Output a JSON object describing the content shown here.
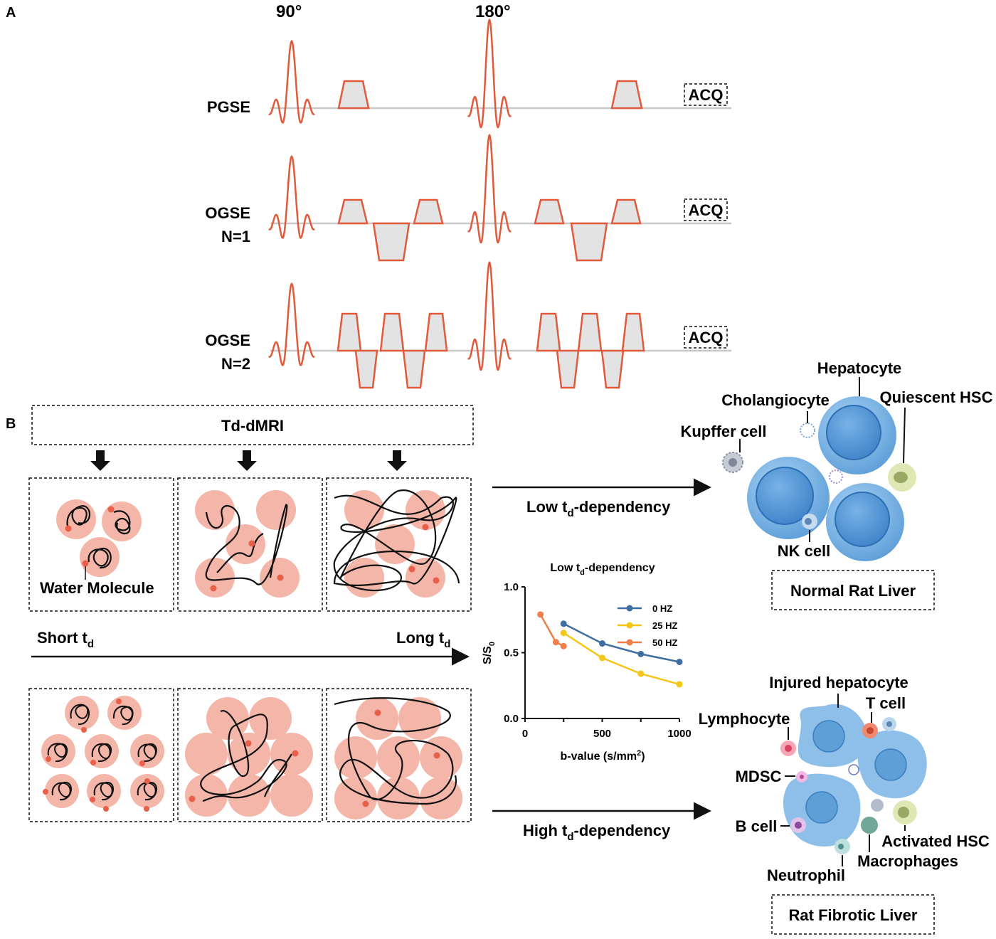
{
  "panel_a": {
    "letter": "A",
    "pulse_90": "90°",
    "pulse_180": "180°",
    "sequences": [
      {
        "label_1": "PGSE",
        "label_2": "",
        "acq": "ACQ"
      },
      {
        "label_1": "OGSE",
        "label_2": "N=1",
        "acq": "ACQ"
      },
      {
        "label_1": "OGSE",
        "label_2": "N=2",
        "acq": "ACQ"
      }
    ]
  },
  "panel_b": {
    "letter": "B",
    "header": "Td-dMRI",
    "water_molecule": "Water Molecule",
    "short_td": "Short t",
    "long_td": "Long t",
    "td_sub": "d",
    "low_dep_prefix": "Low t",
    "high_dep_prefix": "High t",
    "dep_suffix": "-dependency",
    "normal_title": "Normal Rat Liver",
    "fibrotic_title": "Rat Fibrotic Liver",
    "normal_cells": [
      "Hepatocyte",
      "Cholangiocyte",
      "Quiescent HSC",
      "Kupffer cell",
      "NK cell"
    ],
    "fibrotic_cells": [
      "Injured hepatocyte",
      "T cell",
      "Lymphocyte",
      "MDSC",
      "B cell",
      "Activated HSC",
      "Macrophages",
      "Neutrophil"
    ]
  },
  "chart_data": {
    "type": "line",
    "title_prefix": "Low t",
    "title_sub": "d",
    "title_suffix": "-dependency",
    "xlabel": "b-value (s/mm",
    "xlabel_sup": "2",
    "xlabel_end": ")",
    "ylabel": "S/S",
    "ylabel_sub": "0",
    "xlim": [
      0,
      1000
    ],
    "ylim": [
      0.0,
      1.0
    ],
    "xticks": [
      "0",
      "500",
      "1000"
    ],
    "yticks": [
      "0.0",
      "0.5",
      "1.0"
    ],
    "legend_position": "top-right",
    "series": [
      {
        "name": "0 HZ",
        "color": "#3f6ea1",
        "x": [
          250,
          500,
          750,
          1000
        ],
        "y": [
          0.72,
          0.57,
          0.49,
          0.43
        ]
      },
      {
        "name": "25 HZ",
        "color": "#f5c518",
        "x": [
          250,
          500,
          750,
          1000
        ],
        "y": [
          0.65,
          0.46,
          0.34,
          0.26
        ]
      },
      {
        "name": "50 HZ",
        "color": "#f07f4a",
        "x": [
          100,
          200,
          250
        ],
        "y": [
          0.79,
          0.58,
          0.55
        ]
      }
    ]
  },
  "colors": {
    "pulse": "#e05a3c",
    "gradient_fill": "#e3e3e3",
    "baseline": "#c8c8c8",
    "cell_fill": "#f4b6a8",
    "molecule": "#e8604a",
    "hepatocyte": "#7fb6e6"
  }
}
